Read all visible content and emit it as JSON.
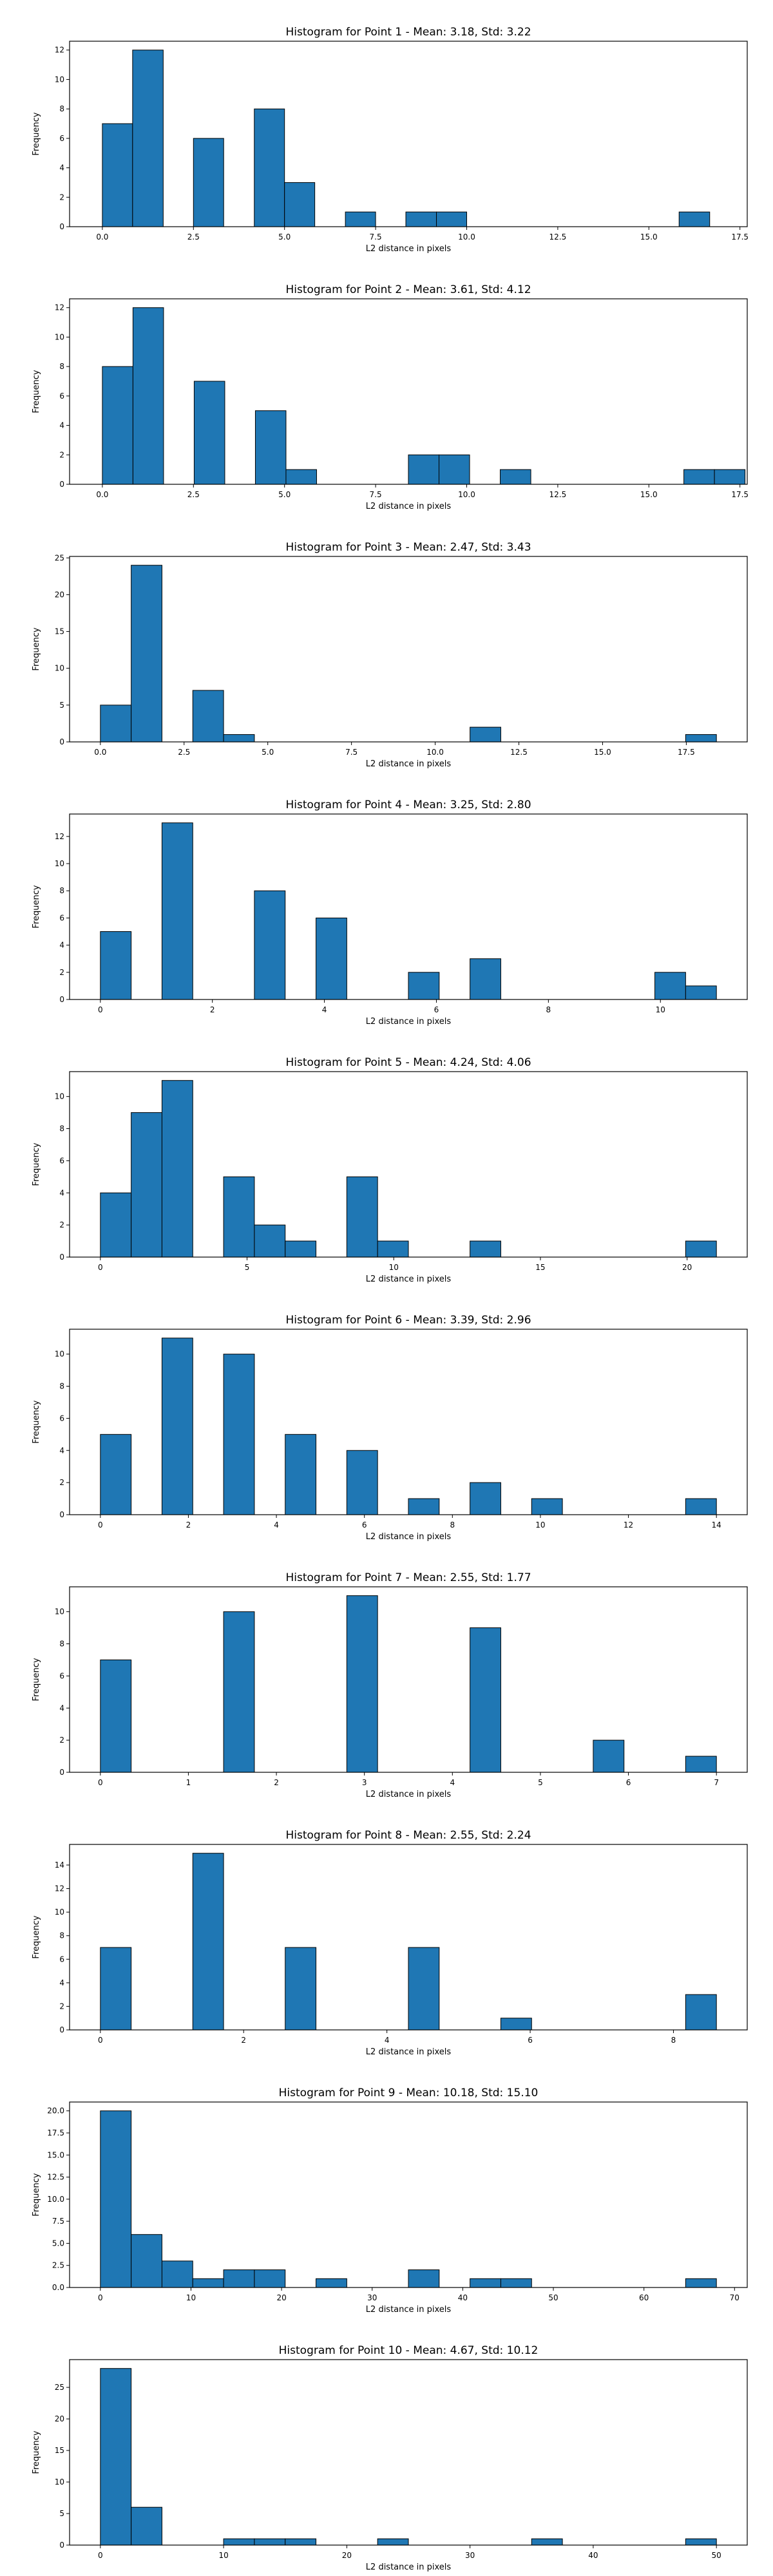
{
  "style": {
    "bar_color": "#1f77b4",
    "edge_color": "#000000",
    "background": "#ffffff"
  },
  "chart_data": [
    {
      "type": "bar",
      "title": "Histogram for Point 1 - Mean: 3.18, Std: 3.22",
      "xlabel": "L2 distance in pixels",
      "ylabel": "Frequency",
      "xlim": [
        -0.9,
        17.7
      ],
      "ylim": [
        0,
        12.6
      ],
      "xticks": [
        0,
        2.5,
        5,
        7.5,
        10,
        12.5,
        15,
        17.5
      ],
      "xtick_labels": [
        "0.0",
        "2.5",
        "5.0",
        "7.5",
        "10.0",
        "12.5",
        "15.0",
        "17.5"
      ],
      "yticks": [
        0,
        2,
        4,
        6,
        8,
        10,
        12
      ],
      "bins": [
        [
          0,
          0.83,
          7
        ],
        [
          0.83,
          1.67,
          12
        ],
        [
          2.5,
          3.33,
          6
        ],
        [
          4.17,
          5,
          8
        ],
        [
          5,
          5.83,
          3
        ],
        [
          6.67,
          7.5,
          1
        ],
        [
          8.33,
          9.17,
          1
        ],
        [
          9.17,
          10,
          1
        ],
        [
          15.83,
          16.67,
          1
        ]
      ]
    },
    {
      "type": "bar",
      "title": "Histogram for Point 2 - Mean: 3.61, Std: 4.12",
      "xlabel": "L2 distance in pixels",
      "ylabel": "Frequency",
      "xlim": [
        -0.9,
        17.7
      ],
      "ylim": [
        0,
        12.6
      ],
      "xticks": [
        0,
        2.5,
        5,
        7.5,
        10,
        12.5,
        15,
        17.5
      ],
      "xtick_labels": [
        "0.0",
        "2.5",
        "5.0",
        "7.5",
        "10.0",
        "12.5",
        "15.0",
        "17.5"
      ],
      "yticks": [
        0,
        2,
        4,
        6,
        8,
        10,
        12
      ],
      "bins": [
        [
          0,
          0.84,
          8
        ],
        [
          0.84,
          1.68,
          12
        ],
        [
          2.52,
          3.36,
          7
        ],
        [
          4.2,
          5.04,
          5
        ],
        [
          5.04,
          5.88,
          1
        ],
        [
          8.4,
          9.24,
          2
        ],
        [
          9.24,
          10.08,
          2
        ],
        [
          10.92,
          11.76,
          1
        ],
        [
          15.96,
          16.8,
          1
        ],
        [
          16.8,
          17.64,
          1
        ]
      ]
    },
    {
      "type": "bar",
      "title": "Histogram for Point 3 - Mean: 2.47, Std: 3.43",
      "xlabel": "L2 distance in pixels",
      "ylabel": "Frequency",
      "xlim": [
        -0.92,
        19.32
      ],
      "ylim": [
        0,
        25.2
      ],
      "xticks": [
        0,
        2.5,
        5,
        7.5,
        10,
        12.5,
        15,
        17.5
      ],
      "xtick_labels": [
        "0.0",
        "2.5",
        "5.0",
        "7.5",
        "10.0",
        "12.5",
        "15.0",
        "17.5"
      ],
      "yticks": [
        0,
        5,
        10,
        15,
        20,
        25
      ],
      "bins": [
        [
          0,
          0.92,
          5
        ],
        [
          0.92,
          1.84,
          24
        ],
        [
          2.76,
          3.68,
          7
        ],
        [
          3.68,
          4.6,
          1
        ],
        [
          11.04,
          11.96,
          2
        ],
        [
          17.48,
          18.4,
          1
        ]
      ]
    },
    {
      "type": "bar",
      "title": "Histogram for Point 4 - Mean: 3.25, Std: 2.80",
      "xlabel": "L2 distance in pixels",
      "ylabel": "Frequency",
      "xlim": [
        -0.55,
        11.55
      ],
      "ylim": [
        0,
        13.65
      ],
      "xticks": [
        0,
        2,
        4,
        6,
        8,
        10
      ],
      "xtick_labels": [
        "0",
        "2",
        "4",
        "6",
        "8",
        "10"
      ],
      "yticks": [
        0,
        2,
        4,
        6,
        8,
        10,
        12
      ],
      "bins": [
        [
          0,
          0.55,
          5
        ],
        [
          1.1,
          1.65,
          13
        ],
        [
          2.75,
          3.3,
          8
        ],
        [
          3.85,
          4.4,
          6
        ],
        [
          5.5,
          6.05,
          2
        ],
        [
          6.6,
          7.15,
          3
        ],
        [
          9.9,
          10.45,
          2
        ],
        [
          10.45,
          11,
          1
        ]
      ]
    },
    {
      "type": "bar",
      "title": "Histogram for Point 5 - Mean: 4.24, Std: 4.06",
      "xlabel": "L2 distance in pixels",
      "ylabel": "Frequency",
      "xlim": [
        -1.05,
        22.05
      ],
      "ylim": [
        0,
        11.55
      ],
      "xticks": [
        0,
        5,
        10,
        15,
        20
      ],
      "xtick_labels": [
        "0",
        "5",
        "10",
        "15",
        "20"
      ],
      "yticks": [
        0,
        2,
        4,
        6,
        8,
        10
      ],
      "bins": [
        [
          0,
          1.05,
          4
        ],
        [
          1.05,
          2.1,
          9
        ],
        [
          2.1,
          3.15,
          11
        ],
        [
          4.2,
          5.25,
          5
        ],
        [
          5.25,
          6.3,
          2
        ],
        [
          6.3,
          7.35,
          1
        ],
        [
          8.4,
          9.45,
          5
        ],
        [
          9.45,
          10.5,
          1
        ],
        [
          12.6,
          13.65,
          1
        ],
        [
          19.95,
          21,
          1
        ]
      ]
    },
    {
      "type": "bar",
      "title": "Histogram for Point 6 - Mean: 3.39, Std: 2.96",
      "xlabel": "L2 distance in pixels",
      "ylabel": "Frequency",
      "xlim": [
        -0.7,
        14.7
      ],
      "ylim": [
        0,
        11.55
      ],
      "xticks": [
        0,
        2,
        4,
        6,
        8,
        10,
        12,
        14
      ],
      "xtick_labels": [
        "0",
        "2",
        "4",
        "6",
        "8",
        "10",
        "12",
        "14"
      ],
      "yticks": [
        0,
        2,
        4,
        6,
        8,
        10
      ],
      "bins": [
        [
          0,
          0.7,
          5
        ],
        [
          1.4,
          2.1,
          11
        ],
        [
          2.8,
          3.5,
          10
        ],
        [
          4.2,
          4.9,
          5
        ],
        [
          5.6,
          6.3,
          4
        ],
        [
          7,
          7.7,
          1
        ],
        [
          8.4,
          9.1,
          2
        ],
        [
          9.8,
          10.5,
          1
        ],
        [
          13.3,
          14,
          1
        ]
      ]
    },
    {
      "type": "bar",
      "title": "Histogram for Point 7 - Mean: 2.55, Std: 1.77",
      "xlabel": "L2 distance in pixels",
      "ylabel": "Frequency",
      "xlim": [
        -0.35,
        7.35
      ],
      "ylim": [
        0,
        11.55
      ],
      "xticks": [
        0,
        1,
        2,
        3,
        4,
        5,
        6,
        7
      ],
      "xtick_labels": [
        "0",
        "1",
        "2",
        "3",
        "4",
        "5",
        "6",
        "7"
      ],
      "yticks": [
        0,
        2,
        4,
        6,
        8,
        10
      ],
      "bins": [
        [
          0,
          0.35,
          7
        ],
        [
          1.4,
          1.75,
          10
        ],
        [
          2.8,
          3.15,
          11
        ],
        [
          4.2,
          4.55,
          9
        ],
        [
          5.6,
          5.95,
          2
        ],
        [
          6.65,
          7,
          1
        ]
      ]
    },
    {
      "type": "bar",
      "title": "Histogram for Point 8 - Mean: 2.55, Std: 2.24",
      "xlabel": "L2 distance in pixels",
      "ylabel": "Frequency",
      "xlim": [
        -0.43,
        9.03
      ],
      "ylim": [
        0,
        15.75
      ],
      "xticks": [
        0,
        2,
        4,
        6,
        8
      ],
      "xtick_labels": [
        "0",
        "2",
        "4",
        "6",
        "8"
      ],
      "yticks": [
        0,
        2,
        4,
        6,
        8,
        10,
        12,
        14
      ],
      "bins": [
        [
          0,
          0.43,
          7
        ],
        [
          1.29,
          1.72,
          15
        ],
        [
          2.58,
          3.01,
          7
        ],
        [
          4.3,
          4.73,
          7
        ],
        [
          5.59,
          6.02,
          1
        ],
        [
          8.17,
          8.6,
          3
        ]
      ]
    },
    {
      "type": "bar",
      "title": "Histogram for Point 9 - Mean: 10.18, Std: 15.10",
      "xlabel": "L2 distance in pixels",
      "ylabel": "Frequency",
      "xlim": [
        -3.4,
        71.4
      ],
      "ylim": [
        0,
        21
      ],
      "xticks": [
        0,
        10,
        20,
        30,
        40,
        50,
        60,
        70
      ],
      "xtick_labels": [
        "0",
        "10",
        "20",
        "30",
        "40",
        "50",
        "60",
        "70"
      ],
      "yticks": [
        0,
        2.5,
        5,
        7.5,
        10,
        12.5,
        15,
        17.5,
        20
      ],
      "ytick_labels": [
        "0.0",
        "2.5",
        "5.0",
        "7.5",
        "10.0",
        "12.5",
        "15.0",
        "17.5",
        "20.0"
      ],
      "bins": [
        [
          0,
          3.4,
          20
        ],
        [
          3.4,
          6.8,
          6
        ],
        [
          6.8,
          10.2,
          3
        ],
        [
          10.2,
          13.6,
          1
        ],
        [
          13.6,
          17,
          2
        ],
        [
          17,
          20.4,
          2
        ],
        [
          23.8,
          27.2,
          1
        ],
        [
          34,
          37.4,
          2
        ],
        [
          40.8,
          44.2,
          1
        ],
        [
          44.2,
          47.6,
          1
        ],
        [
          64.6,
          68,
          1
        ]
      ]
    },
    {
      "type": "bar",
      "title": "Histogram for Point 10 - Mean: 4.67, Std: 10.12",
      "xlabel": "L2 distance in pixels",
      "ylabel": "Frequency",
      "xlim": [
        -2.5,
        52.5
      ],
      "ylim": [
        0,
        29.4
      ],
      "xticks": [
        0,
        10,
        20,
        30,
        40,
        50
      ],
      "xtick_labels": [
        "0",
        "10",
        "20",
        "30",
        "40",
        "50"
      ],
      "yticks": [
        0,
        5,
        10,
        15,
        20,
        25
      ],
      "bins": [
        [
          0,
          2.5,
          28
        ],
        [
          2.5,
          5,
          6
        ],
        [
          10,
          12.5,
          1
        ],
        [
          12.5,
          15,
          1
        ],
        [
          15,
          17.5,
          1
        ],
        [
          22.5,
          25,
          1
        ],
        [
          35,
          37.5,
          1
        ],
        [
          47.5,
          50,
          1
        ]
      ]
    }
  ]
}
